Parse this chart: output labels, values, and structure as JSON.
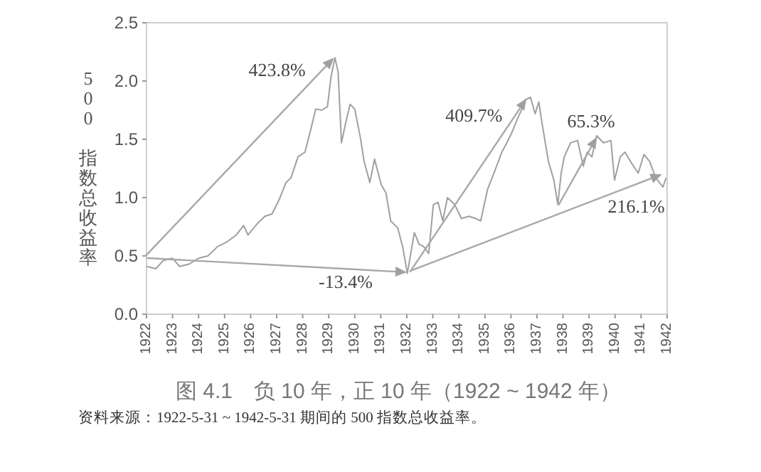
{
  "chart_data": {
    "type": "line",
    "title": "图 4.1　负 10 年，正 10 年（1922 ~ 1942 年）",
    "ylabel": "500 指数总收益率",
    "annotations": [
      {
        "text": "423.8%",
        "x": 1929.2,
        "y": 2.2
      },
      {
        "text": "-13.4%",
        "x": 1932,
        "y": 0.36
      },
      {
        "text": "409.7%",
        "x": 1936.6,
        "y": 1.85
      },
      {
        "text": "65.3%",
        "x": 1939.3,
        "y": 1.52
      },
      {
        "text": "216.1%",
        "x": 1941.8,
        "y": 1.2
      },
      "资料来源：1922-5-31 ~ 1942-5-31 期间的 500 指数总收益率。"
    ],
    "xlim": [
      1922,
      1942
    ],
    "xticks": [
      1922,
      1923,
      1924,
      1925,
      1926,
      1927,
      1928,
      1929,
      1930,
      1931,
      1932,
      1933,
      1934,
      1935,
      1936,
      1937,
      1938,
      1939,
      1940,
      1941,
      1942
    ],
    "ylim": [
      0,
      2.5
    ],
    "yticks": [
      {
        "value": 0,
        "label": "0.0"
      },
      {
        "value": 0.5,
        "label": "0.5"
      },
      {
        "value": 1,
        "label": "1.0"
      },
      {
        "value": 1.5,
        "label": "1.5"
      },
      {
        "value": 2,
        "label": "2.0"
      },
      {
        "value": 2.5,
        "label": "2.5"
      }
    ],
    "grid": false,
    "legend": false,
    "series": [
      {
        "color": "#a0a0a0",
        "x": [
          1922.0,
          1922.36,
          1922.64,
          1923.0,
          1923.27,
          1923.64,
          1924.0,
          1924.36,
          1924.73,
          1925.09,
          1925.45,
          1925.73,
          1925.9,
          1926.27,
          1926.55,
          1926.82,
          1927.09,
          1927.36,
          1927.55,
          1927.82,
          1928.09,
          1928.36,
          1928.5,
          1928.73,
          1928.95,
          1929.09,
          1929.24,
          1929.36,
          1929.49,
          1929.64,
          1929.82,
          1930.0,
          1930.22,
          1930.36,
          1930.58,
          1930.76,
          1931.02,
          1931.2,
          1931.38,
          1931.65,
          1931.84,
          1932.02,
          1932.29,
          1932.47,
          1932.65,
          1932.84,
          1933.02,
          1933.2,
          1933.38,
          1933.56,
          1933.84,
          1934.1,
          1934.38,
          1934.65,
          1934.84,
          1935.1,
          1935.38,
          1935.65,
          1935.84,
          1936.02,
          1936.24,
          1936.42,
          1936.56,
          1936.75,
          1936.93,
          1937.07,
          1937.2,
          1937.44,
          1937.65,
          1937.8,
          1937.93,
          1938.05,
          1938.29,
          1938.56,
          1938.78,
          1938.93,
          1939.11,
          1939.29,
          1939.56,
          1939.84,
          1939.98,
          1940.2,
          1940.38,
          1940.65,
          1940.89,
          1941.11,
          1941.33,
          1941.56,
          1941.84,
          1941.96
        ],
        "values": [
          0.41,
          0.39,
          0.46,
          0.48,
          0.41,
          0.43,
          0.48,
          0.5,
          0.58,
          0.62,
          0.68,
          0.76,
          0.68,
          0.78,
          0.84,
          0.86,
          0.98,
          1.13,
          1.17,
          1.35,
          1.39,
          1.63,
          1.76,
          1.75,
          1.78,
          2.04,
          2.2,
          2.08,
          1.47,
          1.63,
          1.8,
          1.76,
          1.51,
          1.31,
          1.13,
          1.33,
          1.11,
          1.04,
          0.8,
          0.74,
          0.58,
          0.35,
          0.7,
          0.6,
          0.58,
          0.52,
          0.94,
          0.96,
          0.8,
          1.0,
          0.94,
          0.82,
          0.84,
          0.82,
          0.8,
          1.07,
          1.23,
          1.39,
          1.47,
          1.55,
          1.67,
          1.76,
          1.84,
          1.86,
          1.72,
          1.82,
          1.63,
          1.31,
          1.15,
          0.94,
          1.21,
          1.35,
          1.47,
          1.49,
          1.27,
          1.39,
          1.35,
          1.53,
          1.47,
          1.49,
          1.15,
          1.35,
          1.39,
          1.29,
          1.21,
          1.37,
          1.31,
          1.17,
          1.09,
          1.17
        ]
      }
    ]
  }
}
